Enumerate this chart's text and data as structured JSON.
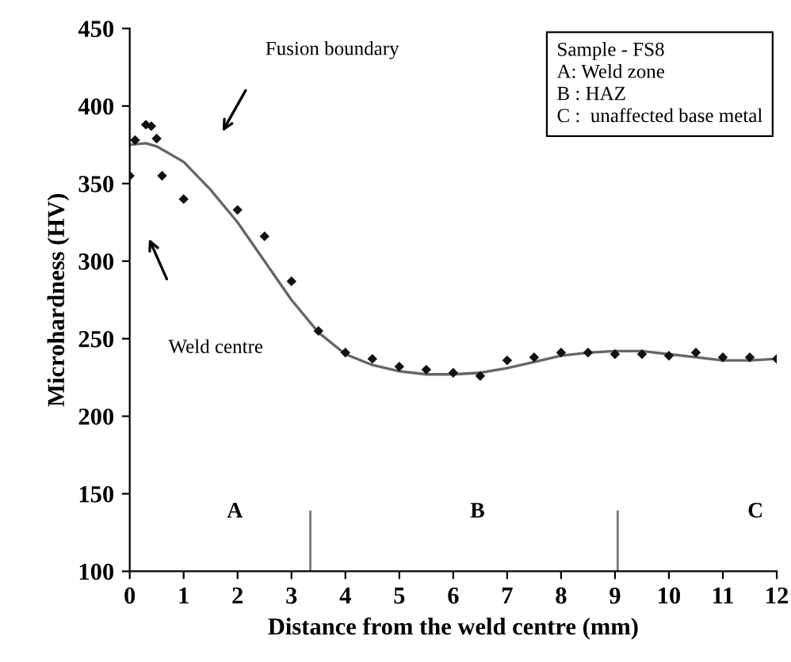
{
  "chart_data": {
    "type": "scatter",
    "xlabel": "Distance from the weld centre (mm)",
    "ylabel": "Microhardness (HV)",
    "xlim": [
      0,
      12
    ],
    "xticks": [
      0,
      1,
      2,
      3,
      4,
      5,
      6,
      7,
      8,
      9,
      10,
      11,
      12
    ],
    "ylim": [
      100,
      450
    ],
    "yticks": [
      100,
      150,
      200,
      250,
      300,
      350,
      400,
      450
    ],
    "grid": false,
    "series": [
      {
        "marker": "diamond",
        "color": "#111111",
        "x": [
          0,
          0.1,
          0.3,
          0.4,
          0.5,
          0.6,
          1,
          2,
          2.5,
          3,
          3.5,
          4,
          4.5,
          5,
          5.5,
          6,
          6.5,
          7,
          7.5,
          8,
          8.5,
          9,
          9.5,
          10,
          10.5,
          11,
          11.5,
          12
        ],
        "values": [
          355,
          378,
          388,
          387,
          379,
          355,
          340,
          333,
          316,
          287,
          255,
          241,
          237,
          232,
          230,
          228,
          226,
          236,
          238,
          241,
          241,
          240,
          240,
          239,
          241,
          238,
          238,
          237
        ]
      },
      {
        "type": "line",
        "color": "#666666",
        "x": [
          0,
          0.3,
          0.5,
          1,
          1.5,
          2,
          2.5,
          3,
          3.5,
          4,
          4.5,
          5,
          5.5,
          6,
          6.5,
          7,
          7.5,
          8,
          8.5,
          9,
          9.5,
          10,
          10.5,
          11,
          11.5,
          12
        ],
        "values": [
          375,
          376,
          374,
          364,
          346,
          325,
          300,
          275,
          254,
          240,
          233,
          229,
          227,
          227,
          228,
          231,
          235,
          239,
          241,
          242,
          242,
          240,
          238,
          236,
          236,
          237
        ]
      }
    ],
    "ref_lines": [
      {
        "axis": "x",
        "value": 3.35,
        "color": "#777777"
      },
      {
        "axis": "x",
        "value": 9.05,
        "color": "#777777"
      }
    ],
    "annotations": [
      "Fusion boundary",
      "Weld centre",
      "A",
      "B",
      "C",
      "Sample - FS8",
      "A: Weld zone",
      "B : HAZ",
      "C :  unaffected base metal"
    ]
  }
}
